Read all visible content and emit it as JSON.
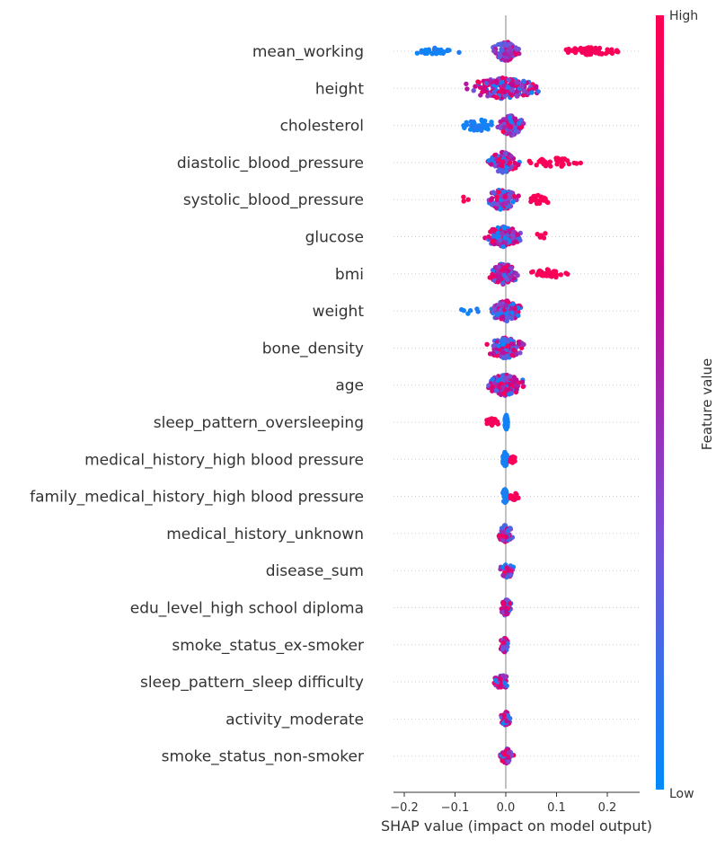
{
  "chart_data": {
    "type": "scatter",
    "subtype": "shap-beeswarm",
    "title": "",
    "xlabel": "SHAP value (impact on model output)",
    "ylabel": "",
    "xlim": [
      -0.225,
      0.265
    ],
    "x_ticks": [
      -0.2,
      -0.1,
      0.0,
      0.1,
      0.2
    ],
    "x_tick_labels": [
      "−0.2",
      "−0.1",
      "0.0",
      "0.1",
      "0.2"
    ],
    "zero_line": true,
    "grid": false,
    "colorbar": {
      "label": "Feature value",
      "high_label": "High",
      "low_label": "Low",
      "colors": [
        "#008bfb",
        "#7b4fd6",
        "#c4058f",
        "#ff0052"
      ]
    },
    "features": [
      {
        "name": "mean_working",
        "low": {
          "min": -0.2,
          "max": -0.08,
          "n": 26,
          "spread": 0.25
        },
        "mid": {
          "min": -0.03,
          "max": 0.03,
          "n": 80,
          "spread": 0.85
        },
        "high": {
          "min": 0.09,
          "max": 0.245,
          "n": 60,
          "spread": 0.3
        }
      },
      {
        "name": "height",
        "mix": {
          "min": -0.09,
          "max": 0.08,
          "n": 190,
          "spread": 0.85
        }
      },
      {
        "name": "cholesterol",
        "low": {
          "min": -0.1,
          "max": -0.01,
          "n": 40,
          "spread": 0.5
        },
        "mix": {
          "min": -0.02,
          "max": 0.04,
          "n": 120,
          "spread": 0.85
        }
      },
      {
        "name": "diastolic_blood_pressure",
        "mix": {
          "min": -0.04,
          "max": 0.03,
          "n": 110,
          "spread": 0.85
        },
        "high": {
          "min": 0.03,
          "max": 0.17,
          "n": 40,
          "spread": 0.35
        }
      },
      {
        "name": "systolic_blood_pressure",
        "high_left": {
          "min": -0.095,
          "max": -0.06,
          "n": 3,
          "spread": 0.3
        },
        "mix": {
          "min": -0.045,
          "max": 0.03,
          "n": 120,
          "spread": 0.85
        },
        "high": {
          "min": 0.03,
          "max": 0.1,
          "n": 25,
          "spread": 0.35
        }
      },
      {
        "name": "glucose",
        "mix": {
          "min": -0.05,
          "max": 0.04,
          "n": 140,
          "spread": 0.85
        },
        "high": {
          "min": 0.045,
          "max": 0.1,
          "n": 6,
          "spread": 0.3
        }
      },
      {
        "name": "bmi",
        "mix": {
          "min": -0.04,
          "max": 0.03,
          "n": 110,
          "spread": 0.85
        },
        "high": {
          "min": 0.03,
          "max": 0.135,
          "n": 40,
          "spread": 0.35
        }
      },
      {
        "name": "weight",
        "low": {
          "min": -0.09,
          "max": -0.05,
          "n": 6,
          "spread": 0.3
        },
        "mix": {
          "min": -0.04,
          "max": 0.04,
          "n": 130,
          "spread": 0.85
        }
      },
      {
        "name": "bone_density",
        "mix": {
          "min": -0.045,
          "max": 0.045,
          "n": 140,
          "spread": 0.85
        }
      },
      {
        "name": "age",
        "mix": {
          "min": -0.05,
          "max": 0.045,
          "n": 140,
          "spread": 0.85
        }
      },
      {
        "name": "sleep_pattern_oversleeping",
        "high": {
          "min": -0.048,
          "max": -0.005,
          "n": 25,
          "spread": 0.3
        },
        "low": {
          "min": -0.003,
          "max": 0.005,
          "n": 60,
          "spread": 0.6
        }
      },
      {
        "name": "medical_history_high blood pressure",
        "low": {
          "min": -0.008,
          "max": 0.005,
          "n": 60,
          "spread": 0.6
        },
        "high": {
          "min": 0.005,
          "max": 0.022,
          "n": 12,
          "spread": 0.3
        }
      },
      {
        "name": "family_medical_history_high blood pressure",
        "low": {
          "min": -0.008,
          "max": 0.005,
          "n": 60,
          "spread": 0.6
        },
        "high": {
          "min": 0.005,
          "max": 0.028,
          "n": 14,
          "spread": 0.3
        }
      },
      {
        "name": "medical_history_unknown",
        "mix": {
          "min": -0.02,
          "max": 0.018,
          "n": 60,
          "spread": 0.7
        }
      },
      {
        "name": "disease_sum",
        "mix": {
          "min": -0.015,
          "max": 0.02,
          "n": 50,
          "spread": 0.6
        }
      },
      {
        "name": "edu_level_high school diploma",
        "mix": {
          "min": -0.012,
          "max": 0.014,
          "n": 55,
          "spread": 0.7
        }
      },
      {
        "name": "smoke_status_ex-smoker",
        "mix": {
          "min": -0.014,
          "max": 0.008,
          "n": 55,
          "spread": 0.6
        }
      },
      {
        "name": "sleep_pattern_sleep difficulty",
        "mix": {
          "min": -0.028,
          "max": 0.012,
          "n": 55,
          "spread": 0.6
        }
      },
      {
        "name": "activity_moderate",
        "mix": {
          "min": -0.012,
          "max": 0.012,
          "n": 50,
          "spread": 0.6
        }
      },
      {
        "name": "smoke_status_non-smoker",
        "mix": {
          "min": -0.014,
          "max": 0.018,
          "n": 55,
          "spread": 0.6
        }
      }
    ]
  }
}
